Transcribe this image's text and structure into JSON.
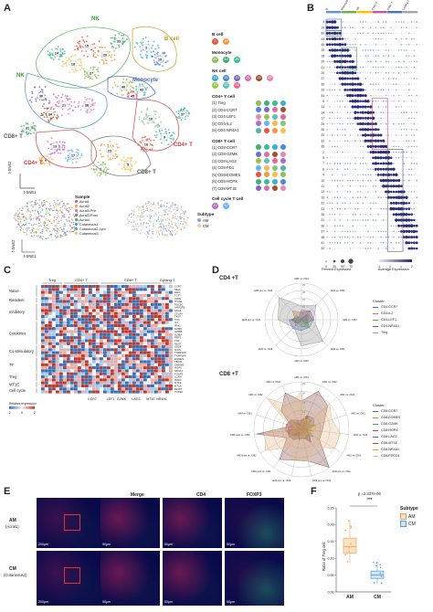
{
  "panels": {
    "A": "A",
    "B": "B",
    "C": "C",
    "D": "D",
    "E": "E",
    "F": "F"
  },
  "panel_a": {
    "clusters": [
      "NK",
      "B cell",
      "NK",
      "Monocyte",
      "CD8+ T",
      "CD4+ T",
      "CD4+ T",
      "CD8+ T"
    ],
    "axis_x": "t-SNE1",
    "axis_y": "t-SNE2",
    "legend_title": "Sample",
    "samples": [
      "Acral1",
      "Acral2",
      "Acral3-Pre",
      "Acral3-Post",
      "Acral4",
      "Cutaneous1",
      "Cutaneous2-Lym",
      "Cutaneous3"
    ],
    "subtype_title": "Subtype",
    "subtypes": [
      "AM",
      "CM"
    ],
    "subtype_colors": [
      "#7eaed6",
      "#f5c99b"
    ]
  },
  "panel_a_legend": {
    "groups": [
      {
        "title": "B cell",
        "items": [
          "3",
          "19"
        ]
      },
      {
        "title": "Monocyte",
        "items": [
          "40",
          "43",
          "45"
        ]
      },
      {
        "title": "NK cell",
        "items": [
          "15",
          "18",
          "20",
          "21",
          "24",
          "27",
          "30",
          "33",
          "34"
        ]
      },
      {
        "title": "CD4+ T cell",
        "items": [
          "(1) Treg",
          "(2) CD4-CCR7",
          "(3) CD4-LEF1",
          "(4) CD4-IL2",
          "(5) CD4-NR4A1"
        ]
      },
      {
        "title": "CD8+ T cell",
        "items": [
          "(1) CD8-CCR7",
          "(2) CD8-GZMK",
          "(3) CD8-LAG3",
          "(4) CD8-PD1",
          "(5) CD8-EOMES",
          "(6) CD8-HOPX",
          "(7) CD8-MT1E"
        ]
      },
      {
        "title": "Cell cycle T cell",
        "items": [
          "41",
          "42"
        ]
      }
    ]
  },
  "panel_b": {
    "column_groups": [
      "B",
      "Monocyte",
      "NK",
      "CD4+ T",
      "CD8+ T",
      "Cycling T"
    ],
    "row_labels": [
      "3",
      "19",
      "40",
      "43",
      "45",
      "15",
      "18",
      "20",
      "21",
      "24",
      "27",
      "30",
      "33",
      "34",
      "6",
      "13",
      "14",
      "17",
      "25",
      "26",
      "29",
      "32",
      "35",
      "2",
      "5",
      "7",
      "8",
      "9",
      "10",
      "11",
      "12",
      "16",
      "22",
      "23",
      "28",
      "31",
      "36",
      "37",
      "38",
      "41",
      "42"
    ],
    "size_legend_title": "Percent Expressed",
    "size_legend_values": [
      "0",
      "25",
      "50",
      "75"
    ],
    "color_legend_title": "Average Expression",
    "color_legend_values": [
      "-1",
      "0",
      "1",
      "2"
    ]
  },
  "panel_c": {
    "col_groups": [
      "Treg",
      "CD4+ T",
      "CD8+ T",
      "Cycling T"
    ],
    "row_groups": [
      "Naive",
      "Resident",
      "Inhibitory",
      "Cytokines",
      "Co-stimulatory",
      "TF",
      "Treg",
      "MT1E",
      "Cell cycle"
    ],
    "genes": [
      "CCR7",
      "SELL",
      "LEF1",
      "TCF7",
      "CD69",
      "ITGAE",
      "PDCD1",
      "HAVCR2",
      "LAG3",
      "CTLA4",
      "TIGIT",
      "TOX",
      "IL2",
      "IFNG",
      "GZMK",
      "GZMB",
      "GZMA",
      "PRF1",
      "TNF",
      "NKG7",
      "CD28",
      "ICOS",
      "TNFRSF9",
      "TNFRSF4",
      "EOMES",
      "TBX21",
      "ZNF683",
      "HOPX",
      "NR4A1",
      "FOXP3",
      "IL2RA",
      "IKZF2",
      "MT1E",
      "MT2A",
      "MKI67",
      "TOP2A"
    ],
    "bottom_labels": [
      "CCR7",
      "LEF1",
      "GZMK",
      "LAG3",
      "MT1E",
      "NR4A1"
    ],
    "scale_title": "Relative expression",
    "scale_values": [
      "-2",
      "0",
      "2"
    ]
  },
  "panel_d": {
    "top_title": "CD4 +T",
    "bottom_title": "CD8 +T",
    "spokes": [
      "AM1 vs. CM1",
      "AM1 vs. CM2",
      "AM1 vs. CM3",
      "AM2 vs. CM1",
      "AM2 vs. CM2",
      "AM2 vs. CM3",
      "AM3-pre vs. CM1",
      "AM3-pre vs. CM2",
      "AM3-pre vs. CM3",
      "AM3-post vs. CM1",
      "AM3-post vs. CM2",
      "AM3-post vs. CM3",
      "AM4 vs. CM1",
      "AM4 vs. CM2",
      "AM4 vs. CM3"
    ],
    "legend_title": "Cluster",
    "cd4_clusters": [
      "CD4-CCR7",
      "CD4-IL2",
      "CD4-LEF1",
      "CD4-NR4A1",
      "Treg"
    ],
    "cd4_colors": [
      "#3b6fb6",
      "#e07a2b",
      "#4aa34a",
      "#7a4fa0",
      "#999999"
    ],
    "cd8_clusters": [
      "CD8-CCR7",
      "CD8-EOMES",
      "CD8-GZMK",
      "CD8-HOPX",
      "CD8-LAG3",
      "CD8-MT1E",
      "CD8-NR4A1",
      "CD8-PDCD1"
    ],
    "cd8_colors": [
      "#3b6fb6",
      "#e07a2b",
      "#4aa34a",
      "#c43c3c",
      "#7a4fa0",
      "#8c564b",
      "#d4a02f",
      "#e3bd8a"
    ],
    "ring_labels": [
      "5",
      "10",
      "15",
      "20",
      "25"
    ]
  },
  "panel_e": {
    "headers": [
      "Merge",
      "CD4",
      "FOXP3"
    ],
    "rows": [
      {
        "label": "AM",
        "sub": "(Acral1)"
      },
      {
        "label": "CM",
        "sub": "(Cutaneous2)"
      }
    ],
    "scale_large": "200μm",
    "scale_small": "50μm"
  },
  "panel_f": {
    "pvalue": "p =2.337e-06",
    "stars": "***",
    "ylabel": "Ratio of Treg cell",
    "legend_title": "Subtype",
    "legend": [
      "AM",
      "CM"
    ],
    "colors": [
      "#f0a35c",
      "#5aa0d6"
    ]
  },
  "chart_data": {
    "type": "box",
    "title": "",
    "xlabel": "",
    "ylabel": "Ratio of Treg cell",
    "categories": [
      "AM",
      "CM"
    ],
    "ylim": [
      0.0,
      0.25
    ],
    "yticks": [
      "0.00",
      "0.05",
      "0.10",
      "0.15",
      "0.20",
      "0.25"
    ],
    "series": [
      {
        "name": "AM",
        "q1": 0.115,
        "median": 0.135,
        "q3": 0.16,
        "whisker_low": 0.085,
        "whisker_high": 0.215
      },
      {
        "name": "CM",
        "q1": 0.04,
        "median": 0.05,
        "q3": 0.062,
        "whisker_low": 0.025,
        "whisker_high": 0.09
      }
    ]
  }
}
